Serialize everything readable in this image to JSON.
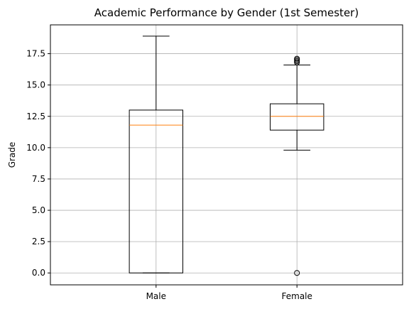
{
  "chart_data": {
    "type": "boxplot",
    "title": "Academic Performance by Gender (1st Semester)",
    "xlabel": "",
    "ylabel": "Grade",
    "ylim": [
      -0.95,
      19.8
    ],
    "yticks": [
      0.0,
      2.5,
      5.0,
      7.5,
      10.0,
      12.5,
      15.0,
      17.5
    ],
    "ytick_labels": [
      "0.0",
      "2.5",
      "5.0",
      "7.5",
      "10.0",
      "12.5",
      "15.0",
      "17.5"
    ],
    "grid": true,
    "categories": [
      "Male",
      "Female"
    ],
    "boxes": [
      {
        "label": "Male",
        "whisker_low": 0.0,
        "q1": 0.0,
        "median": 11.8,
        "q3": 13.0,
        "whisker_high": 18.9,
        "outliers": []
      },
      {
        "label": "Female",
        "whisker_low": 9.8,
        "q1": 11.4,
        "median": 12.5,
        "q3": 13.5,
        "whisker_high": 16.6,
        "outliers": [
          0.0,
          16.8,
          16.9,
          17.0,
          17.1
        ]
      }
    ],
    "colors": {
      "box": "#000000",
      "median": "#ff7f0e",
      "grid": "#b0b0b0"
    }
  }
}
